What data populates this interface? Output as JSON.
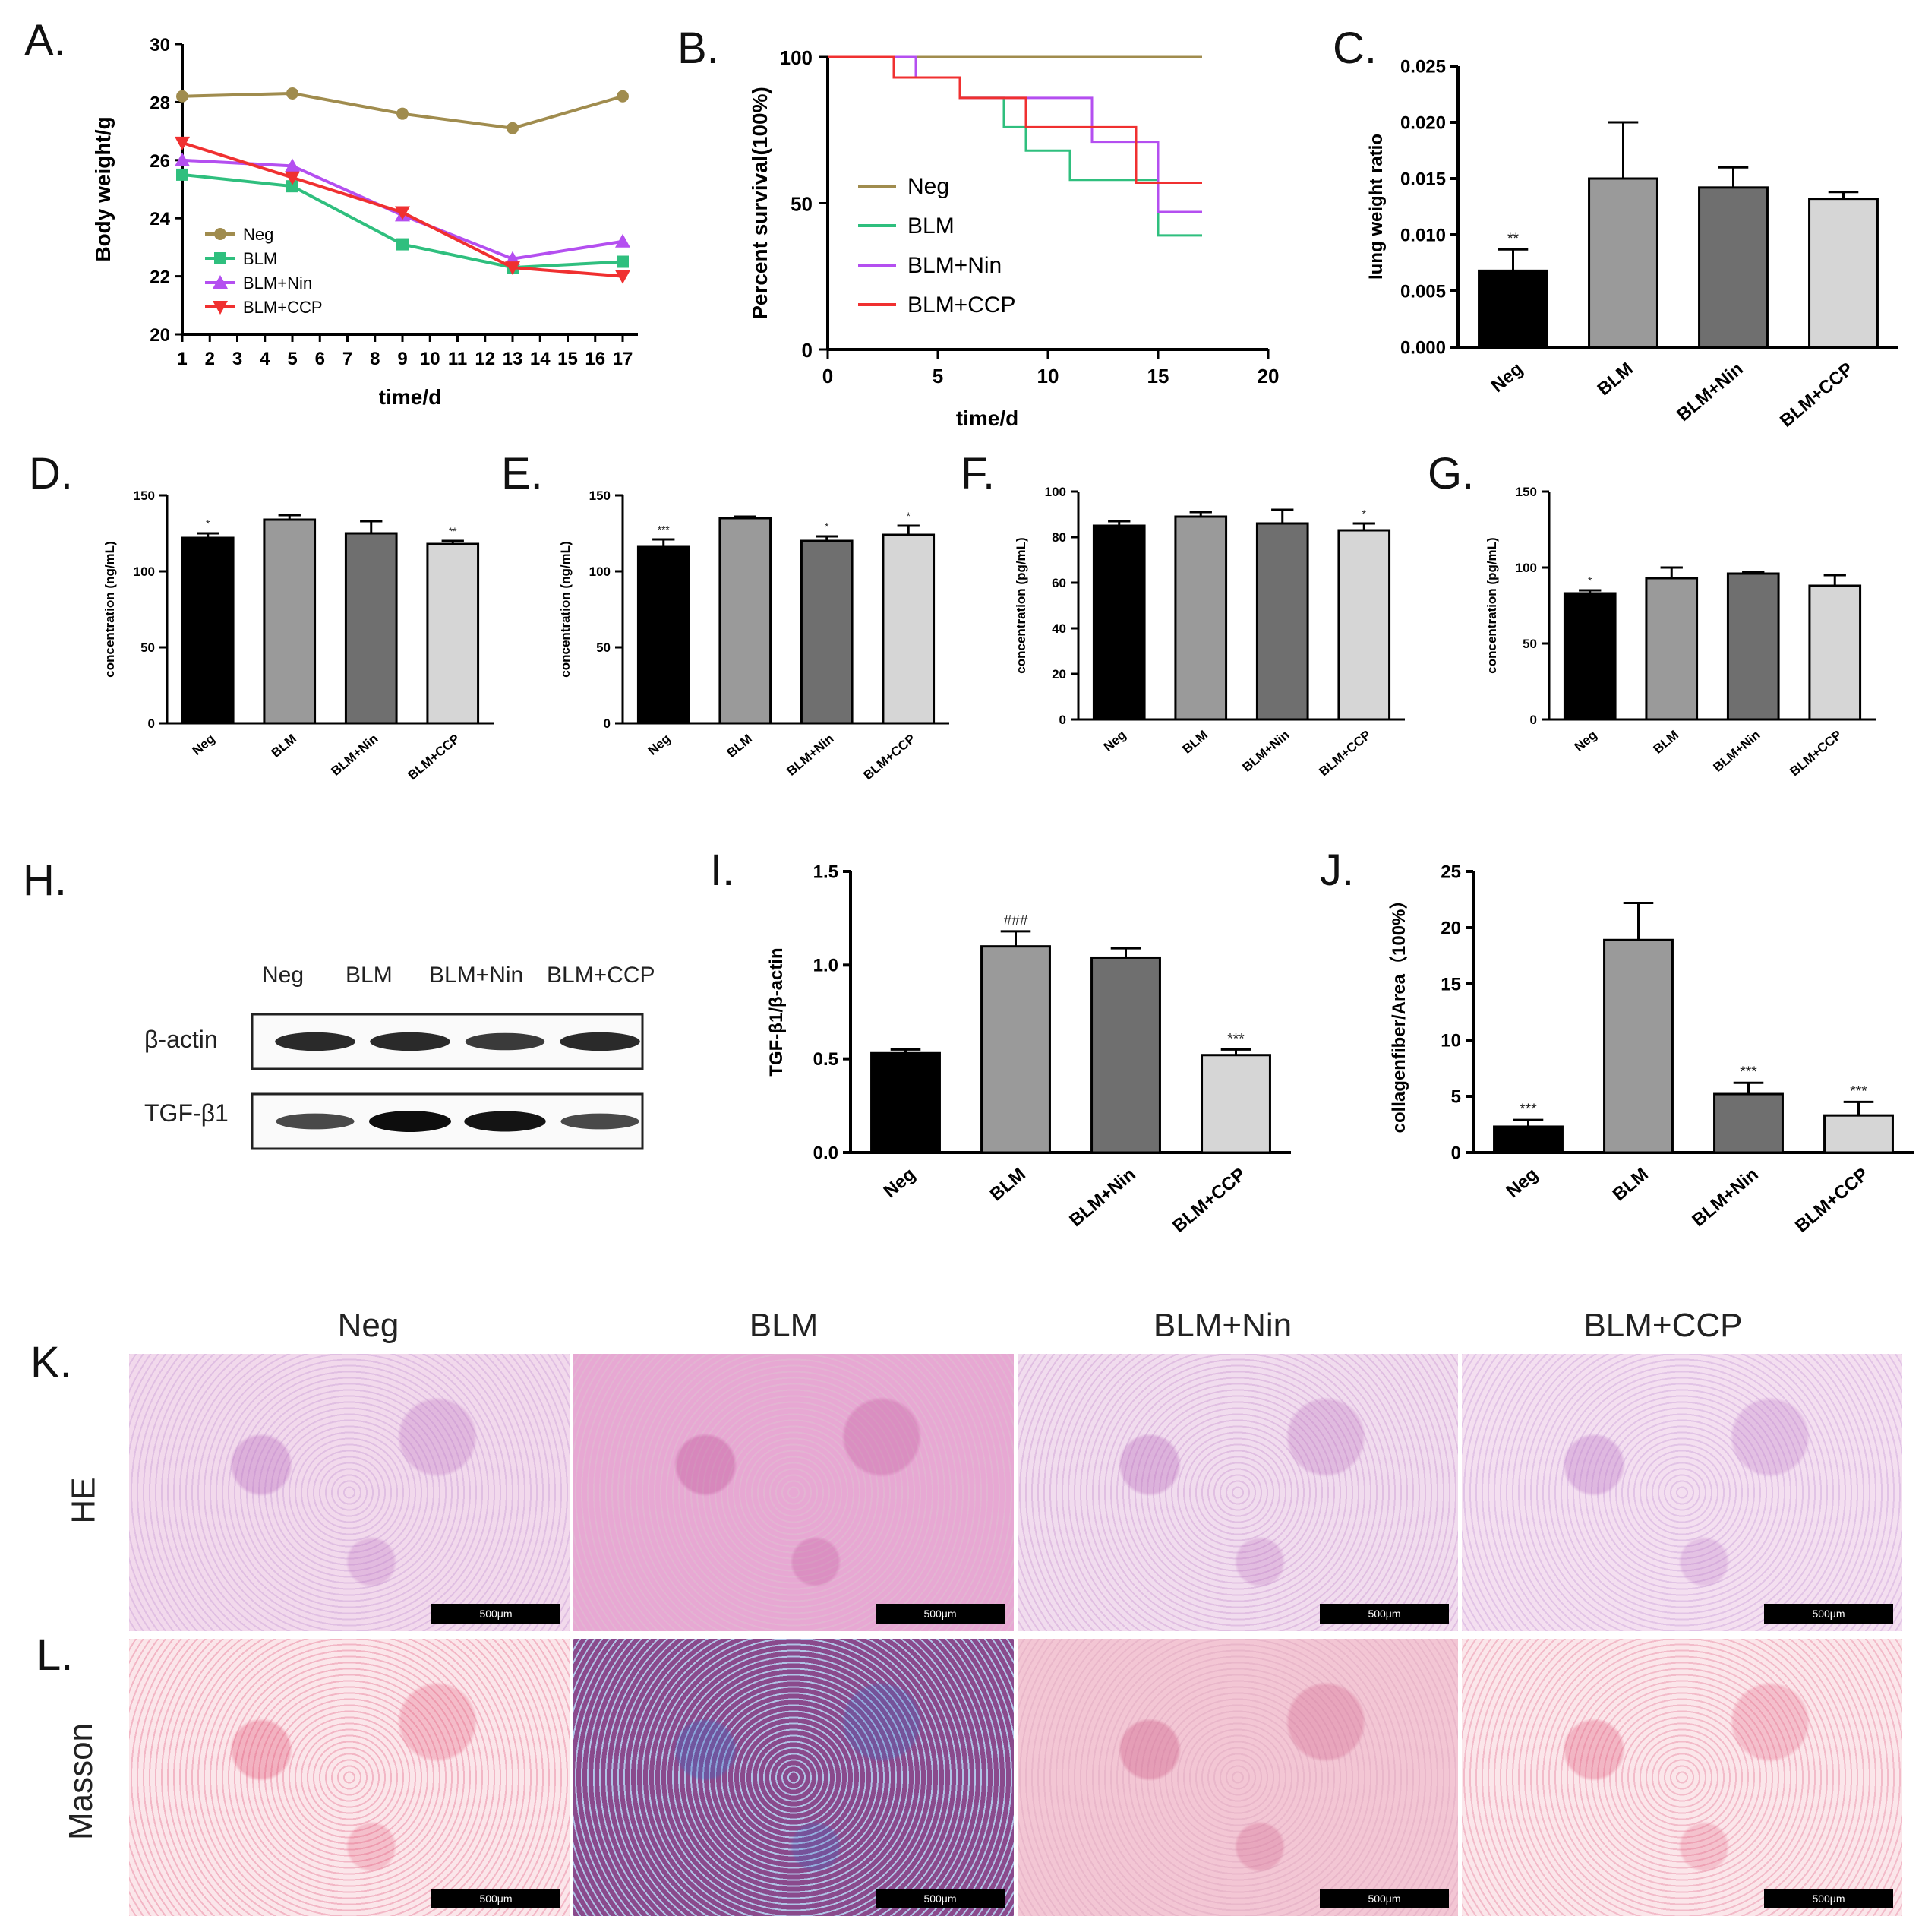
{
  "panels": {
    "A": "A.",
    "B": "B.",
    "C": "C.",
    "D": "D.",
    "E": "E.",
    "F": "F.",
    "G": "G.",
    "H": "H.",
    "I": "I.",
    "J": "J.",
    "K": "K.",
    "L": "L."
  },
  "colors": {
    "neg_line": "#a08c4e",
    "blm_line": "#2fbf7e",
    "nin_line": "#b44ff0",
    "ccp_line": "#f03030",
    "neg_bar": "#000000",
    "blm_bar": "#9a9a9a",
    "nin_bar": "#6f6f6f",
    "ccp_bar": "#d6d6d6"
  },
  "chart_data": [
    {
      "id": "A",
      "type": "line",
      "xlabel": "time/d",
      "ylabel": "Body weight/g",
      "ylim": [
        20,
        30
      ],
      "yticks": [
        20,
        22,
        24,
        26,
        28,
        30
      ],
      "xtick_labels": [
        "1",
        "2",
        "3",
        "4",
        "5",
        "6",
        "7",
        "8",
        "9",
        "10",
        "11",
        "12",
        "13",
        "14",
        "15",
        "16",
        "17"
      ],
      "x": [
        1,
        5,
        9,
        13,
        17
      ],
      "series": [
        {
          "name": "Neg",
          "values": [
            28.2,
            28.3,
            27.6,
            27.1,
            28.2
          ],
          "color": "#a08c4e",
          "marker": "circle"
        },
        {
          "name": "BLM",
          "values": [
            25.5,
            25.1,
            23.1,
            22.3,
            22.5
          ],
          "color": "#2fbf7e",
          "marker": "square"
        },
        {
          "name": "BLM+Nin",
          "values": [
            26.0,
            25.8,
            24.1,
            22.6,
            23.2
          ],
          "color": "#b44ff0",
          "marker": "triangle-up"
        },
        {
          "name": "BLM+CCP",
          "values": [
            26.6,
            25.4,
            24.2,
            22.3,
            22.0
          ],
          "color": "#f03030",
          "marker": "triangle-down"
        }
      ],
      "legend": "bottom-left"
    },
    {
      "id": "B",
      "type": "line",
      "xlabel": "time/d",
      "ylabel": "Percent survival(100%)",
      "xlim": [
        0,
        20
      ],
      "xticks": [
        0,
        5,
        10,
        15,
        20
      ],
      "ylim": [
        0,
        100
      ],
      "yticks": [
        0,
        50,
        100
      ],
      "series": [
        {
          "name": "Neg",
          "color": "#a08c4e",
          "steps": [
            [
              0,
              100
            ],
            [
              17,
              100
            ]
          ]
        },
        {
          "name": "BLM",
          "color": "#2fbf7e",
          "steps": [
            [
              0,
              100
            ],
            [
              4,
              100
            ],
            [
              4,
              93
            ],
            [
              6,
              93
            ],
            [
              6,
              86
            ],
            [
              8,
              86
            ],
            [
              8,
              76
            ],
            [
              9,
              76
            ],
            [
              9,
              68
            ],
            [
              11,
              68
            ],
            [
              11,
              58
            ],
            [
              15,
              58
            ],
            [
              15,
              39
            ],
            [
              17,
              39
            ]
          ]
        },
        {
          "name": "BLM+Nin",
          "color": "#b44ff0",
          "steps": [
            [
              0,
              100
            ],
            [
              4,
              100
            ],
            [
              4,
              93
            ],
            [
              6,
              93
            ],
            [
              6,
              86
            ],
            [
              12,
              86
            ],
            [
              12,
              71
            ],
            [
              15,
              71
            ],
            [
              15,
              47
            ],
            [
              17,
              47
            ]
          ]
        },
        {
          "name": "BLM+CCP",
          "color": "#f03030",
          "steps": [
            [
              0,
              100
            ],
            [
              3,
              100
            ],
            [
              3,
              93
            ],
            [
              4,
              93
            ],
            [
              4,
              93
            ],
            [
              6,
              93
            ],
            [
              6,
              86
            ],
            [
              9,
              86
            ],
            [
              9,
              76
            ],
            [
              14,
              76
            ],
            [
              14,
              57
            ],
            [
              17,
              57
            ]
          ]
        }
      ],
      "legend": "center-left"
    },
    {
      "id": "C",
      "type": "bar",
      "ylabel": "lung weight ratio",
      "categories": [
        "Neg",
        "BLM",
        "BLM+Nin",
        "BLM+CCP"
      ],
      "values": [
        0.0068,
        0.015,
        0.0142,
        0.0132
      ],
      "errors": [
        0.0019,
        0.005,
        0.0018,
        0.0006
      ],
      "sig": [
        "**",
        "",
        "",
        ""
      ],
      "ylim": [
        0,
        0.025
      ],
      "yticks": [
        "0.000",
        "0.005",
        "0.010",
        "0.015",
        "0.020",
        "0.025"
      ]
    },
    {
      "id": "D",
      "type": "bar",
      "ylabel": "concentration (ng/mL)",
      "categories": [
        "Neg",
        "BLM",
        "BLM+Nin",
        "BLM+CCP"
      ],
      "values": [
        122,
        134,
        125,
        118
      ],
      "errors": [
        3,
        3,
        8,
        2
      ],
      "sig": [
        "*",
        "",
        "",
        "**"
      ],
      "ylim": [
        0,
        150
      ],
      "yticks": [
        "0",
        "50",
        "100",
        "150"
      ]
    },
    {
      "id": "E",
      "type": "bar",
      "ylabel": "concentration (ng/mL)",
      "categories": [
        "Neg",
        "BLM",
        "BLM+Nin",
        "BLM+CCP"
      ],
      "values": [
        116,
        135,
        120,
        124
      ],
      "errors": [
        5,
        1,
        3,
        6
      ],
      "sig": [
        "***",
        "",
        "*",
        "*"
      ],
      "ylim": [
        0,
        150
      ],
      "yticks": [
        "0",
        "50",
        "100",
        "150"
      ]
    },
    {
      "id": "F",
      "type": "bar",
      "ylabel": "concentration (pg/mL)",
      "categories": [
        "Neg",
        "BLM",
        "BLM+Nin",
        "BLM+CCP"
      ],
      "values": [
        85,
        89,
        86,
        83
      ],
      "errors": [
        2,
        2,
        6,
        3
      ],
      "sig": [
        "",
        "",
        "",
        "*"
      ],
      "ylim": [
        0,
        100
      ],
      "yticks": [
        "0",
        "20",
        "40",
        "60",
        "80",
        "100"
      ]
    },
    {
      "id": "G",
      "type": "bar",
      "ylabel": "concentration (pg/mL)",
      "categories": [
        "Neg",
        "BLM",
        "BLM+Nin",
        "BLM+CCP"
      ],
      "values": [
        83,
        93,
        96,
        88
      ],
      "errors": [
        2,
        7,
        1,
        7
      ],
      "sig": [
        "*",
        "",
        "",
        ""
      ],
      "ylim": [
        0,
        150
      ],
      "yticks": [
        "0",
        "50",
        "100",
        "150"
      ]
    },
    {
      "id": "I",
      "type": "bar",
      "ylabel": "TGF-β1/β-actin",
      "categories": [
        "Neg",
        "BLM",
        "BLM+Nin",
        "BLM+CCP"
      ],
      "values": [
        0.53,
        1.1,
        1.04,
        0.52
      ],
      "errors": [
        0.02,
        0.08,
        0.05,
        0.03
      ],
      "sig": [
        "",
        "###",
        "",
        "***"
      ],
      "ylim": [
        0,
        1.5
      ],
      "yticks": [
        "0.0",
        "0.5",
        "1.0",
        "1.5"
      ]
    },
    {
      "id": "J",
      "type": "bar",
      "ylabel": "collagenfiber/Area（100%）",
      "categories": [
        "Neg",
        "BLM",
        "BLM+Nin",
        "BLM+CCP"
      ],
      "values": [
        2.3,
        18.9,
        5.2,
        3.3
      ],
      "errors": [
        0.6,
        3.3,
        1.0,
        1.2
      ],
      "sig": [
        "***",
        "",
        "***",
        "***"
      ],
      "ylim": [
        0,
        25
      ],
      "yticks": [
        "0",
        "5",
        "10",
        "15",
        "20",
        "25"
      ]
    }
  ],
  "western_blot": {
    "lanes": [
      "Neg",
      "BLM",
      "BLM+Nin",
      "BLM+CCP"
    ],
    "rows": [
      {
        "label": "β-actin",
        "intensity": [
          0.8,
          0.8,
          0.7,
          0.8
        ]
      },
      {
        "label": "TGF-β1",
        "intensity": [
          0.6,
          1.0,
          0.95,
          0.6
        ]
      }
    ]
  },
  "micrographs": {
    "columns": [
      "Neg",
      "BLM",
      "BLM+Nin",
      "BLM+CCP"
    ],
    "rows": [
      "HE",
      "Masson"
    ],
    "scalebar": "500μm"
  }
}
